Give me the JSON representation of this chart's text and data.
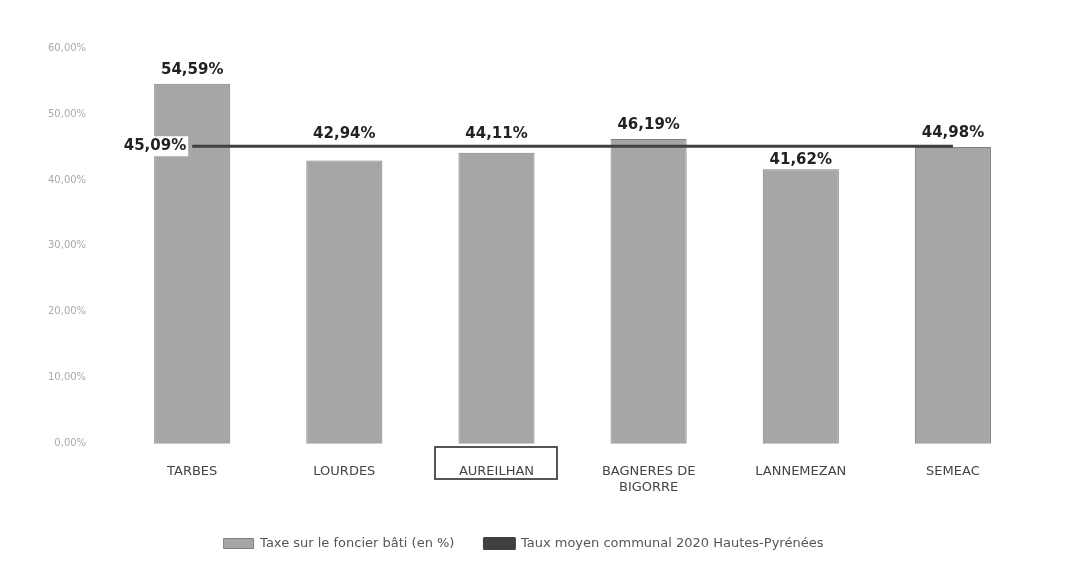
{
  "chart_data": {
    "type": "bar",
    "categories": [
      "TARBES",
      "LOURDES",
      "AUREILHAN",
      "BAGNERES DE BIGORRE",
      "LANNEMEZAN",
      "SEMEAC"
    ],
    "series": [
      {
        "name": "Taxe sur le foncier bâti (en %)",
        "type": "bar",
        "color": "#a6a6a6",
        "values": [
          54.59,
          42.94,
          44.11,
          46.19,
          41.62,
          44.98
        ],
        "value_labels": [
          "54,59%",
          "42,94%",
          "44,11%",
          "46,19%",
          "41,62%",
          "44,98%"
        ]
      },
      {
        "name": "Taux moyen communal 2020 Hautes-Pyrénées",
        "type": "line",
        "color": "#404040",
        "values": [
          45.09,
          45.09,
          45.09,
          45.09,
          45.09,
          45.09
        ],
        "value_labels": [
          "45,09%",
          null,
          null,
          null,
          null,
          null
        ]
      }
    ],
    "ylim": [
      0,
      60
    ],
    "yticks": [
      {
        "value": 0,
        "label": "0,00%"
      },
      {
        "value": 10,
        "label": "10,00%"
      },
      {
        "value": 20,
        "label": "20,00%"
      },
      {
        "value": 30,
        "label": "30,00%"
      },
      {
        "value": 40,
        "label": "40,00%"
      },
      {
        "value": 50,
        "label": "50,00%"
      },
      {
        "value": 60,
        "label": "60,00%"
      }
    ],
    "legend": "bottom",
    "marker": "none"
  }
}
